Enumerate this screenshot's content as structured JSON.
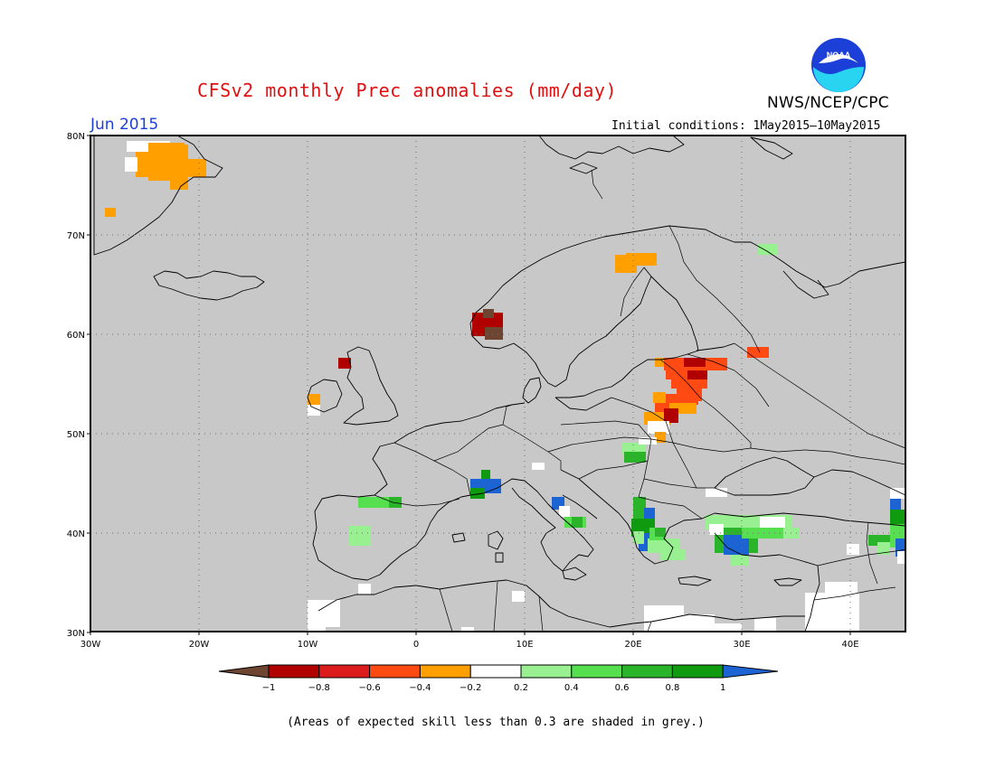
{
  "header": {
    "title": "CFSv2 monthly Prec anomalies (mm/day)",
    "agency": "NWS/NCEP/CPC",
    "logo_text": "NOAA",
    "month": "Jun 2015",
    "initial_conditions": "Initial conditions: 1May2015—10May2015"
  },
  "map": {
    "lat_labels": [
      "80N",
      "70N",
      "60N",
      "50N",
      "40N",
      "30N"
    ],
    "lon_labels": [
      "30W",
      "20W",
      "10W",
      "0",
      "10E",
      "20E",
      "30E",
      "40E"
    ],
    "background": "#c8c8c8",
    "region": "Europe"
  },
  "legend": {
    "ticks": [
      "−1",
      "−0.8",
      "−0.6",
      "−0.4",
      "−0.2",
      "0.2",
      "0.4",
      "0.6",
      "0.8",
      "1"
    ],
    "colors": [
      "#6e4530",
      "#b00000",
      "#dc1c1c",
      "#ff4a14",
      "#ffa000",
      "#ffffff",
      "#98f090",
      "#56e050",
      "#2ab42a",
      "#109a10",
      "#1c64d4"
    ]
  },
  "note": "(Areas of expected skill less than 0.3 are shaded in grey.)"
}
